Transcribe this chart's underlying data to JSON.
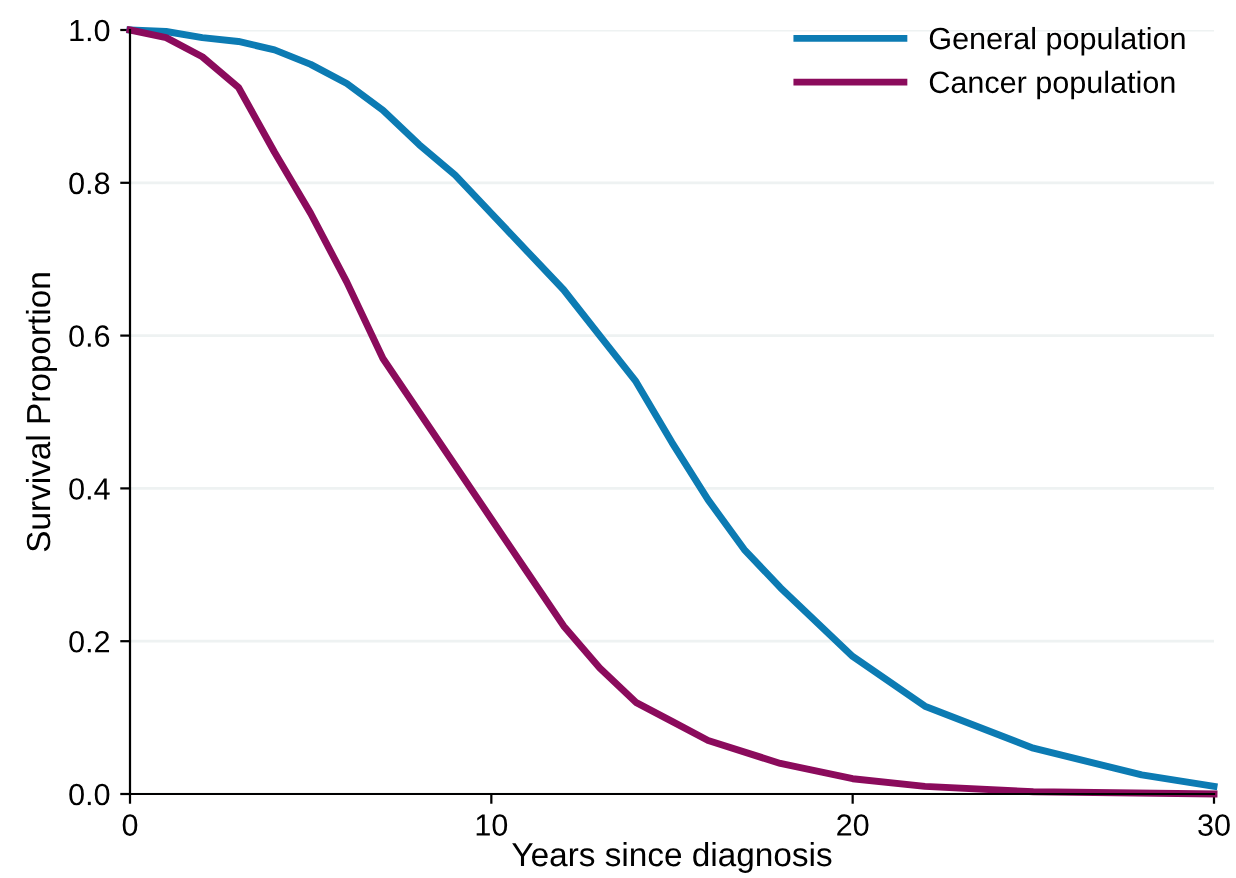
{
  "chart_data": {
    "type": "line",
    "xlabel": "Years since diagnosis",
    "ylabel": "Survival Proportion",
    "xlim": [
      0,
      30
    ],
    "ylim": [
      0,
      1.0
    ],
    "xticks": [
      0,
      10,
      20,
      30
    ],
    "yticks": [
      {
        "value": 0,
        "label": "0.0"
      },
      {
        "value": 0.2,
        "label": "0.2"
      },
      {
        "value": 0.4,
        "label": "0.4"
      },
      {
        "value": 0.6,
        "label": "0.6"
      },
      {
        "value": 0.8,
        "label": "0.8"
      },
      {
        "value": 1.0,
        "label": "1.0"
      }
    ],
    "grid": "y",
    "legend": "top right",
    "marker": "none",
    "line_style": "solid",
    "series": [
      {
        "name": "General population",
        "color": "#0c7bb3",
        "x": [
          0,
          1,
          2,
          3,
          4,
          5,
          6,
          7,
          8,
          9,
          10,
          11,
          12,
          13,
          14,
          15,
          16,
          17,
          18,
          20,
          22,
          25,
          28,
          30
        ],
        "values": [
          1.0,
          0.998,
          0.99,
          0.985,
          0.974,
          0.955,
          0.93,
          0.895,
          0.85,
          0.81,
          0.76,
          0.71,
          0.66,
          0.6,
          0.54,
          0.46,
          0.385,
          0.32,
          0.27,
          0.18,
          0.115,
          0.06,
          0.025,
          0.01
        ]
      },
      {
        "name": "Cancer population",
        "color": "#8b0b5c",
        "x": [
          0,
          1,
          2,
          3,
          4,
          5,
          6,
          7,
          8,
          9,
          10,
          11,
          12,
          13,
          14,
          15,
          16,
          18,
          20,
          22,
          25,
          30
        ],
        "values": [
          1.0,
          0.99,
          0.965,
          0.925,
          0.84,
          0.76,
          0.67,
          0.57,
          0.5,
          0.43,
          0.36,
          0.29,
          0.22,
          0.165,
          0.12,
          0.095,
          0.07,
          0.04,
          0.02,
          0.01,
          0.003,
          0.0
        ]
      }
    ]
  }
}
